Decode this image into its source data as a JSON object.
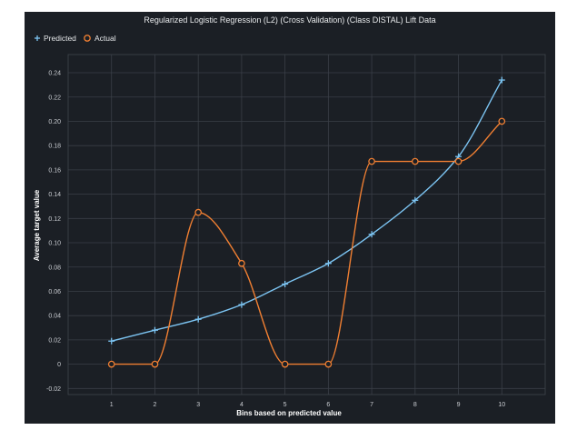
{
  "colors": {
    "background": "#1b1f25",
    "predicted": "#7cc4f2",
    "actual": "#f07f32",
    "grid": "#3a3f47"
  },
  "chart_data": {
    "type": "line",
    "title": "Regularized Logistic Regression (L2) (Cross Validation) (Class DISTAL) Lift Data",
    "xlabel": "Bins based on predicted value",
    "ylabel": "Average target value",
    "x": [
      1,
      2,
      3,
      4,
      5,
      6,
      7,
      8,
      9,
      10
    ],
    "x_tick_labels": [
      "1",
      "2",
      "3",
      "4",
      "5",
      "6",
      "7",
      "8",
      "9",
      "10"
    ],
    "xlim": [
      0,
      11
    ],
    "ylim": [
      -0.025,
      0.255
    ],
    "y_ticks": [
      -0.02,
      0,
      0.02,
      0.04,
      0.06,
      0.08,
      0.1,
      0.12,
      0.14,
      0.16,
      0.18,
      0.2,
      0.22,
      0.24
    ],
    "y_tick_labels": [
      "-0.02",
      "0",
      "0.02",
      "0.04",
      "0.06",
      "0.08",
      "0.10",
      "0.12",
      "0.14",
      "0.16",
      "0.18",
      "0.20",
      "0.22",
      "0.24"
    ],
    "grid": true,
    "legend_position": "top-left",
    "series": [
      {
        "name": "Predicted",
        "marker": "plus",
        "color": "#7cc4f2",
        "values": [
          0.019,
          0.028,
          0.037,
          0.049,
          0.066,
          0.083,
          0.107,
          0.135,
          0.171,
          0.234
        ]
      },
      {
        "name": "Actual",
        "marker": "circle",
        "color": "#f07f32",
        "values": [
          0,
          0,
          0.125,
          0.083,
          0,
          0,
          0.167,
          0.167,
          0.167,
          0.2
        ]
      }
    ]
  }
}
